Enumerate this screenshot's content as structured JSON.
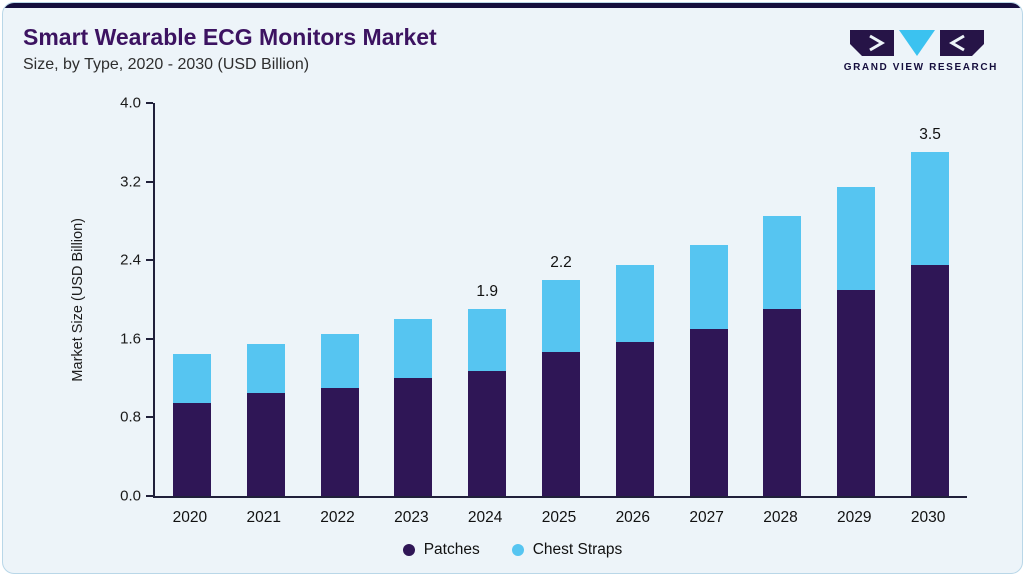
{
  "header": {
    "title": "Smart Wearable ECG Monitors Market",
    "subtitle": "Size, by Type, 2020 - 2030 (USD Billion)",
    "logo_text": "GRAND VIEW RESEARCH"
  },
  "colors": {
    "background": "#edf4f9",
    "card_border": "#b9d7e8",
    "top_accent": "#150e3d",
    "title": "#3c1361",
    "axis": "#20203a",
    "patches": "#2f1656",
    "chest_straps": "#56c5f1"
  },
  "chart_data": {
    "type": "bar",
    "stacked": true,
    "title": "Smart Wearable ECG Monitors Market Size, by Type, 2020 - 2030 (USD Billion)",
    "xlabel": "",
    "ylabel": "Market Size (USD Billion)",
    "ylim": [
      0,
      4.0
    ],
    "yticks": [
      "0.0",
      "0.8",
      "1.6",
      "2.4",
      "3.2",
      "4.0"
    ],
    "grid": false,
    "legend_position": "bottom",
    "categories": [
      "2020",
      "2021",
      "2022",
      "2023",
      "2024",
      "2025",
      "2026",
      "2027",
      "2028",
      "2029",
      "2030"
    ],
    "series": [
      {
        "name": "Patches",
        "color": "#2f1656",
        "values": [
          0.95,
          1.05,
          1.1,
          1.2,
          1.27,
          1.47,
          1.57,
          1.7,
          1.9,
          2.1,
          2.35
        ]
      },
      {
        "name": "Chest Straps",
        "color": "#56c5f1",
        "values": [
          0.5,
          0.5,
          0.55,
          0.6,
          0.63,
          0.73,
          0.78,
          0.85,
          0.95,
          1.05,
          1.15
        ]
      }
    ],
    "totals": [
      1.45,
      1.55,
      1.65,
      1.8,
      1.9,
      2.2,
      2.35,
      2.55,
      2.85,
      3.15,
      3.5
    ],
    "bar_labels": [
      "",
      "",
      "",
      "",
      "1.9",
      "2.2",
      "",
      "",
      "",
      "",
      "3.5"
    ]
  }
}
